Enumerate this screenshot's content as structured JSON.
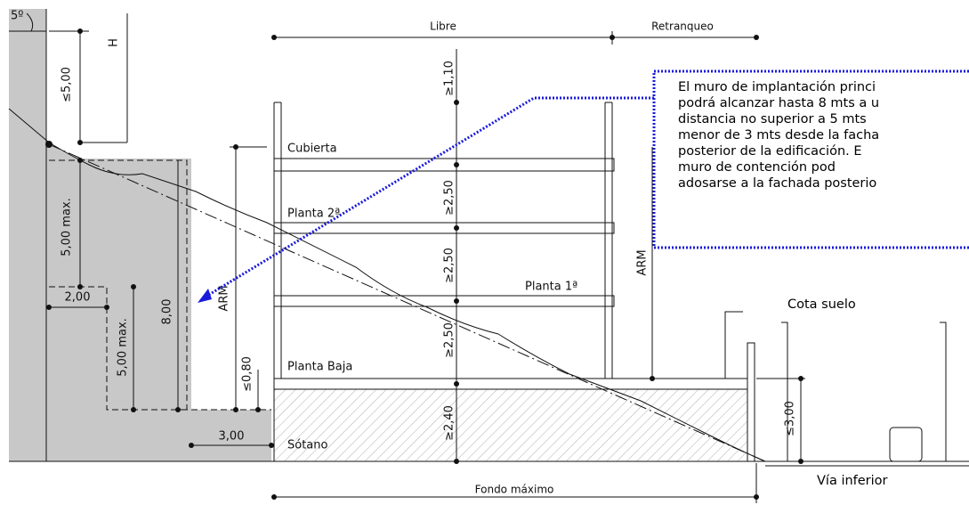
{
  "angle_label": "5º",
  "height_label": "H",
  "dimensions": {
    "top_left": "≤5,00",
    "libre": "Libre",
    "retranqueo": "Retranqueo",
    "roof": "≥1,10",
    "floor_2": "≥2,50",
    "floor_1": "≥2,50",
    "ground_floor": "≥2,50",
    "basement": "≥2,40",
    "arm_left": "ARM",
    "arm_right": "ARM",
    "max_upper": "5,00 max.",
    "total_wall": "8,00",
    "step_width": "2,00",
    "max_lower": "5,00 max.",
    "plinth": "≤0,80",
    "setback": "3,00",
    "fondo": "Fondo máximo",
    "road_height": "≤3,00"
  },
  "levels": {
    "roof": "Cubierta",
    "floor_2": "Planta 2ª",
    "floor_1": "Planta 1ª",
    "ground": "Planta Baja",
    "basement": "Sótano"
  },
  "cota_suelo": "Cota suelo",
  "via_inferior": "Vía inferior",
  "annotation": {
    "lines": [
      "El muro de implantación princi",
      "podrá alcanzar hasta 8 mts a u",
      "distancia no superior a 5 mts",
      "menor de 3 mts desde la facha",
      "posterior de la edificación. E",
      "muro      de      contención      pod",
      "adosarse a la fachada posterio"
    ]
  }
}
